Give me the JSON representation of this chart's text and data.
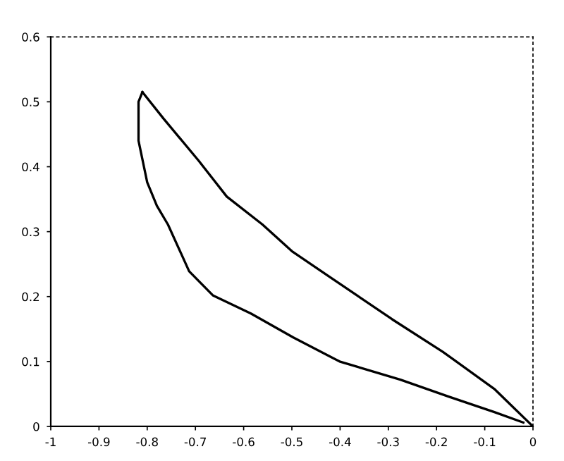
{
  "chart_data": {
    "type": "line",
    "series": [
      {
        "color": "#000000",
        "x": [
          0,
          -0.079,
          -0.187,
          -0.292,
          -0.421,
          -0.5,
          -0.561,
          -0.635,
          -0.693,
          -0.766,
          -0.81
        ],
        "values": [
          0,
          0.057,
          0.115,
          0.165,
          0.23,
          0.27,
          0.311,
          0.354,
          0.409,
          0.474,
          0.515
        ]
      },
      {
        "color": "#000000",
        "x": [
          -0.81,
          -0.818,
          -0.818,
          -0.8,
          -0.78,
          -0.757,
          -0.713,
          -0.664,
          -0.585,
          -0.497,
          -0.401,
          -0.275,
          -0.175,
          -0.08,
          -0.02
        ],
        "values": [
          0.515,
          0.5,
          0.44,
          0.376,
          0.34,
          0.311,
          0.239,
          0.202,
          0.174,
          0.137,
          0.1,
          0.072,
          0.046,
          0.022,
          0.006
        ]
      }
    ],
    "xlim": [
      -1,
      0
    ],
    "ylim": [
      0,
      0.6
    ],
    "xticks": [
      -1,
      -0.9,
      -0.8,
      -0.7,
      -0.6,
      -0.5,
      -0.4,
      -0.3,
      -0.2,
      -0.1,
      0
    ],
    "yticks": [
      0,
      0.1,
      0.2,
      0.3,
      0.4,
      0.5,
      0.6
    ],
    "grid": false,
    "marker": "none",
    "line_style": "solid"
  }
}
